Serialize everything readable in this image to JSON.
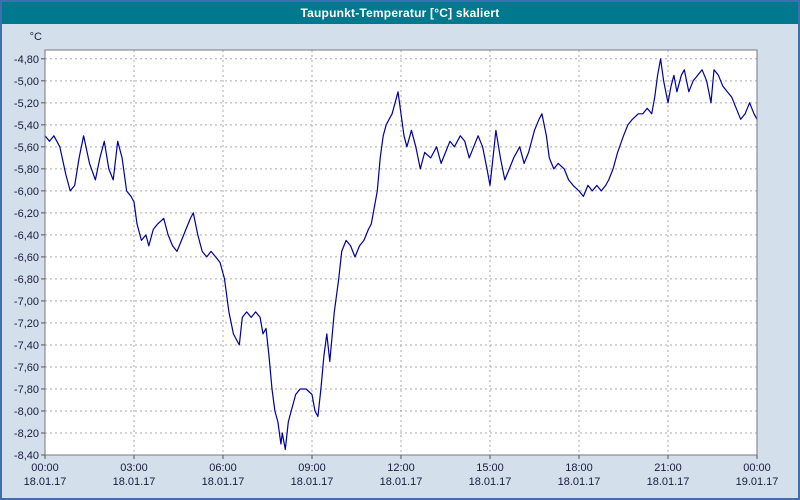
{
  "window": {
    "title": "Taupunkt-Temperatur [°C] skaliert"
  },
  "chart_data": {
    "type": "line",
    "title": "Taupunkt-Temperatur [°C] skaliert",
    "ylabel_unit": "°C",
    "grid": true,
    "legend": "none",
    "ylim": [
      -8.4,
      -4.72
    ],
    "x_range_hours": [
      0,
      24
    ],
    "y_ticks": [
      "-4,80",
      "-5,00",
      "-5,20",
      "-5,40",
      "-5,60",
      "-5,80",
      "-6,00",
      "-6,20",
      "-6,40",
      "-6,60",
      "-6,80",
      "-7,00",
      "-7,20",
      "-7,40",
      "-7,60",
      "-7,80",
      "-8,00",
      "-8,20",
      "-8,40"
    ],
    "x_ticks": [
      {
        "hour": 0,
        "time": "00:00",
        "date": "18.01.17"
      },
      {
        "hour": 3,
        "time": "03:00",
        "date": "18.01.17"
      },
      {
        "hour": 6,
        "time": "06:00",
        "date": "18.01.17"
      },
      {
        "hour": 9,
        "time": "09:00",
        "date": "18.01.17"
      },
      {
        "hour": 12,
        "time": "12:00",
        "date": "18.01.17"
      },
      {
        "hour": 15,
        "time": "15:00",
        "date": "18.01.17"
      },
      {
        "hour": 18,
        "time": "18:00",
        "date": "18.01.17"
      },
      {
        "hour": 21,
        "time": "21:00",
        "date": "18.01.17"
      },
      {
        "hour": 24,
        "time": "00:00",
        "date": "19.01.17"
      }
    ],
    "colors": {
      "titlebar": "#00798f",
      "background": "#d3e0eb",
      "plot_bg": "#ffffff",
      "grid": "#aaaaaa",
      "plot_border": "#7a7a7a",
      "tick": "#555555",
      "line": "#0000a0",
      "window_border": "#3f6fae"
    },
    "series": [
      {
        "name": "Taupunkt-Temperatur skaliert",
        "color": "#0000a0",
        "points": [
          [
            0,
            -5.5
          ],
          [
            0.15,
            -5.55
          ],
          [
            0.3,
            -5.5
          ],
          [
            0.5,
            -5.6
          ],
          [
            0.7,
            -5.85
          ],
          [
            0.85,
            -6.0
          ],
          [
            1.0,
            -5.95
          ],
          [
            1.15,
            -5.7
          ],
          [
            1.3,
            -5.5
          ],
          [
            1.5,
            -5.75
          ],
          [
            1.7,
            -5.9
          ],
          [
            1.85,
            -5.7
          ],
          [
            2.0,
            -5.55
          ],
          [
            2.15,
            -5.8
          ],
          [
            2.3,
            -5.9
          ],
          [
            2.45,
            -5.55
          ],
          [
            2.6,
            -5.7
          ],
          [
            2.75,
            -6.0
          ],
          [
            2.9,
            -6.05
          ],
          [
            3.0,
            -6.1
          ],
          [
            3.1,
            -6.3
          ],
          [
            3.25,
            -6.45
          ],
          [
            3.4,
            -6.4
          ],
          [
            3.5,
            -6.5
          ],
          [
            3.65,
            -6.35
          ],
          [
            3.8,
            -6.3
          ],
          [
            4.0,
            -6.25
          ],
          [
            4.15,
            -6.4
          ],
          [
            4.3,
            -6.5
          ],
          [
            4.45,
            -6.55
          ],
          [
            4.6,
            -6.45
          ],
          [
            4.75,
            -6.35
          ],
          [
            4.9,
            -6.25
          ],
          [
            5.0,
            -6.2
          ],
          [
            5.15,
            -6.4
          ],
          [
            5.3,
            -6.55
          ],
          [
            5.45,
            -6.6
          ],
          [
            5.6,
            -6.55
          ],
          [
            5.75,
            -6.6
          ],
          [
            5.9,
            -6.65
          ],
          [
            6.05,
            -6.8
          ],
          [
            6.2,
            -7.1
          ],
          [
            6.35,
            -7.3
          ],
          [
            6.45,
            -7.35
          ],
          [
            6.55,
            -7.4
          ],
          [
            6.65,
            -7.15
          ],
          [
            6.8,
            -7.1
          ],
          [
            6.95,
            -7.15
          ],
          [
            7.1,
            -7.1
          ],
          [
            7.25,
            -7.15
          ],
          [
            7.35,
            -7.3
          ],
          [
            7.45,
            -7.25
          ],
          [
            7.55,
            -7.5
          ],
          [
            7.65,
            -7.8
          ],
          [
            7.75,
            -8.0
          ],
          [
            7.85,
            -8.1
          ],
          [
            7.95,
            -8.3
          ],
          [
            8.0,
            -8.2
          ],
          [
            8.1,
            -8.35
          ],
          [
            8.2,
            -8.1
          ],
          [
            8.3,
            -8.0
          ],
          [
            8.45,
            -7.85
          ],
          [
            8.6,
            -7.8
          ],
          [
            8.8,
            -7.8
          ],
          [
            9.0,
            -7.85
          ],
          [
            9.1,
            -8.0
          ],
          [
            9.2,
            -8.05
          ],
          [
            9.3,
            -7.8
          ],
          [
            9.4,
            -7.5
          ],
          [
            9.5,
            -7.3
          ],
          [
            9.6,
            -7.55
          ],
          [
            9.75,
            -7.1
          ],
          [
            9.9,
            -6.8
          ],
          [
            10.0,
            -6.55
          ],
          [
            10.15,
            -6.45
          ],
          [
            10.3,
            -6.5
          ],
          [
            10.45,
            -6.6
          ],
          [
            10.6,
            -6.5
          ],
          [
            10.75,
            -6.45
          ],
          [
            10.9,
            -6.35
          ],
          [
            11.0,
            -6.3
          ],
          [
            11.1,
            -6.15
          ],
          [
            11.2,
            -6.0
          ],
          [
            11.3,
            -5.7
          ],
          [
            11.4,
            -5.5
          ],
          [
            11.5,
            -5.4
          ],
          [
            11.6,
            -5.35
          ],
          [
            11.7,
            -5.3
          ],
          [
            11.8,
            -5.2
          ],
          [
            11.9,
            -5.1
          ],
          [
            12.0,
            -5.3
          ],
          [
            12.1,
            -5.5
          ],
          [
            12.2,
            -5.6
          ],
          [
            12.35,
            -5.45
          ],
          [
            12.5,
            -5.6
          ],
          [
            12.65,
            -5.8
          ],
          [
            12.8,
            -5.65
          ],
          [
            13.0,
            -5.7
          ],
          [
            13.2,
            -5.6
          ],
          [
            13.35,
            -5.75
          ],
          [
            13.5,
            -5.65
          ],
          [
            13.65,
            -5.55
          ],
          [
            13.8,
            -5.6
          ],
          [
            14.0,
            -5.5
          ],
          [
            14.15,
            -5.55
          ],
          [
            14.3,
            -5.7
          ],
          [
            14.45,
            -5.6
          ],
          [
            14.6,
            -5.5
          ],
          [
            14.75,
            -5.6
          ],
          [
            14.9,
            -5.8
          ],
          [
            15.0,
            -5.95
          ],
          [
            15.1,
            -5.7
          ],
          [
            15.2,
            -5.45
          ],
          [
            15.35,
            -5.7
          ],
          [
            15.5,
            -5.9
          ],
          [
            15.65,
            -5.8
          ],
          [
            15.8,
            -5.7
          ],
          [
            16.0,
            -5.6
          ],
          [
            16.15,
            -5.75
          ],
          [
            16.3,
            -5.65
          ],
          [
            16.5,
            -5.45
          ],
          [
            16.65,
            -5.35
          ],
          [
            16.75,
            -5.3
          ],
          [
            16.9,
            -5.5
          ],
          [
            17.0,
            -5.7
          ],
          [
            17.15,
            -5.8
          ],
          [
            17.3,
            -5.75
          ],
          [
            17.5,
            -5.8
          ],
          [
            17.65,
            -5.9
          ],
          [
            17.8,
            -5.95
          ],
          [
            18.0,
            -6.0
          ],
          [
            18.15,
            -6.05
          ],
          [
            18.3,
            -5.95
          ],
          [
            18.45,
            -6.0
          ],
          [
            18.6,
            -5.95
          ],
          [
            18.75,
            -6.0
          ],
          [
            18.9,
            -5.95
          ],
          [
            19.0,
            -5.9
          ],
          [
            19.15,
            -5.8
          ],
          [
            19.3,
            -5.65
          ],
          [
            19.5,
            -5.5
          ],
          [
            19.65,
            -5.4
          ],
          [
            19.8,
            -5.35
          ],
          [
            20.0,
            -5.3
          ],
          [
            20.15,
            -5.3
          ],
          [
            20.3,
            -5.25
          ],
          [
            20.45,
            -5.3
          ],
          [
            20.55,
            -5.15
          ],
          [
            20.65,
            -4.95
          ],
          [
            20.75,
            -4.8
          ],
          [
            20.85,
            -5.0
          ],
          [
            21.0,
            -5.2
          ],
          [
            21.1,
            -5.05
          ],
          [
            21.2,
            -4.95
          ],
          [
            21.3,
            -5.1
          ],
          [
            21.45,
            -4.95
          ],
          [
            21.55,
            -4.9
          ],
          [
            21.7,
            -5.1
          ],
          [
            21.85,
            -5.0
          ],
          [
            22.0,
            -4.95
          ],
          [
            22.15,
            -4.9
          ],
          [
            22.3,
            -5.0
          ],
          [
            22.45,
            -5.2
          ],
          [
            22.55,
            -4.9
          ],
          [
            22.7,
            -4.95
          ],
          [
            22.85,
            -5.05
          ],
          [
            23.0,
            -5.1
          ],
          [
            23.15,
            -5.15
          ],
          [
            23.3,
            -5.25
          ],
          [
            23.45,
            -5.35
          ],
          [
            23.6,
            -5.3
          ],
          [
            23.75,
            -5.2
          ],
          [
            23.9,
            -5.3
          ],
          [
            24.0,
            -5.35
          ]
        ]
      }
    ]
  }
}
